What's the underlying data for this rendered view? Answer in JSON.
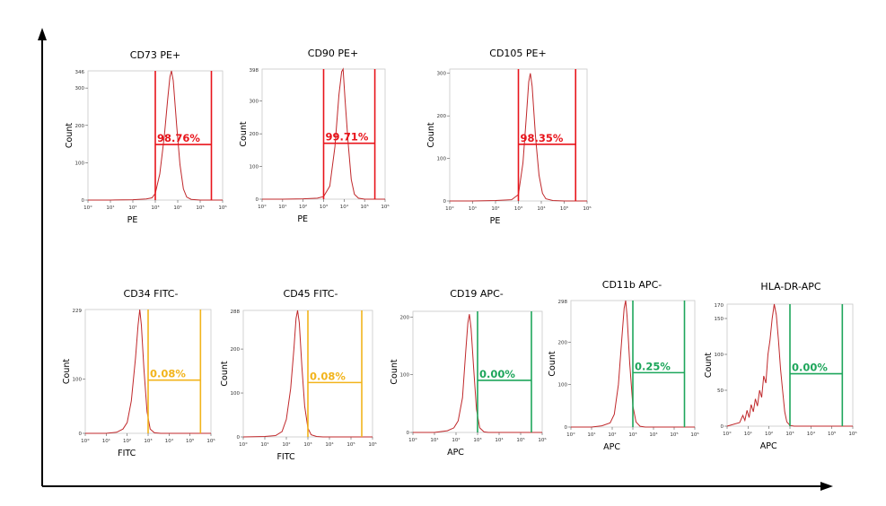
{
  "chart_data": [
    {
      "type": "line",
      "title": "CD73 PE+",
      "xlabel": "PE",
      "ylabel": "Count",
      "y_max_label": "346",
      "y_ticks": [
        0,
        100,
        200,
        300
      ],
      "ylim": [
        0,
        346
      ],
      "x_tick_labels": [
        "10°",
        "10¹",
        "10²",
        "10³",
        "10⁴",
        "10⁵",
        "10⁶"
      ],
      "xlim_log": [
        0,
        6
      ],
      "gate": {
        "label": "98.76%",
        "color": "#e8141b",
        "from_log": 3.0,
        "to_log": 5.5
      },
      "histogram": [
        [
          0,
          0
        ],
        [
          1,
          0
        ],
        [
          2,
          1
        ],
        [
          2.6,
          3
        ],
        [
          2.85,
          6
        ],
        [
          3.0,
          18
        ],
        [
          3.2,
          70
        ],
        [
          3.4,
          170
        ],
        [
          3.55,
          270
        ],
        [
          3.65,
          330
        ],
        [
          3.72,
          346
        ],
        [
          3.8,
          320
        ],
        [
          3.95,
          200
        ],
        [
          4.1,
          95
        ],
        [
          4.25,
          30
        ],
        [
          4.4,
          8
        ],
        [
          4.6,
          2
        ],
        [
          5,
          0
        ],
        [
          6,
          0
        ]
      ],
      "line_color": "#c0282b"
    },
    {
      "type": "line",
      "title": "CD90 PE+",
      "xlabel": "PE",
      "ylabel": "Count",
      "y_max_label": "398",
      "y_ticks": [
        0,
        100,
        200,
        300
      ],
      "ylim": [
        0,
        398
      ],
      "x_tick_labels": [
        "10°",
        "10¹",
        "10²",
        "10³",
        "10⁴",
        "10⁵",
        "10⁶"
      ],
      "xlim_log": [
        0,
        6
      ],
      "gate": {
        "label": "99.71%",
        "color": "#e8141b",
        "from_log": 3.0,
        "to_log": 5.5
      },
      "histogram": [
        [
          0,
          0
        ],
        [
          1,
          0
        ],
        [
          2,
          1
        ],
        [
          2.7,
          3
        ],
        [
          3.0,
          8
        ],
        [
          3.3,
          40
        ],
        [
          3.55,
          160
        ],
        [
          3.75,
          320
        ],
        [
          3.88,
          390
        ],
        [
          3.95,
          398
        ],
        [
          4.05,
          300
        ],
        [
          4.2,
          170
        ],
        [
          4.35,
          60
        ],
        [
          4.5,
          15
        ],
        [
          4.7,
          3
        ],
        [
          5,
          0
        ],
        [
          6,
          0
        ]
      ],
      "line_color": "#c0282b"
    },
    {
      "type": "line",
      "title": "CD105 PE+",
      "xlabel": "PE",
      "ylabel": "Count",
      "y_ticks": [
        0,
        100,
        200,
        300
      ],
      "ylim": [
        0,
        310
      ],
      "x_tick_labels": [
        "10°",
        "10¹",
        "10²",
        "10³",
        "10⁴",
        "10⁵",
        "10⁶"
      ],
      "xlim_log": [
        0,
        6
      ],
      "gate": {
        "label": "98.35%",
        "color": "#e8141b",
        "from_log": 3.0,
        "to_log": 5.5
      },
      "histogram": [
        [
          0,
          0
        ],
        [
          1,
          0
        ],
        [
          2,
          1
        ],
        [
          2.7,
          3
        ],
        [
          3.0,
          15
        ],
        [
          3.2,
          90
        ],
        [
          3.35,
          200
        ],
        [
          3.45,
          280
        ],
        [
          3.52,
          300
        ],
        [
          3.6,
          270
        ],
        [
          3.75,
          150
        ],
        [
          3.9,
          60
        ],
        [
          4.05,
          18
        ],
        [
          4.2,
          5
        ],
        [
          4.5,
          1
        ],
        [
          5,
          0
        ],
        [
          6,
          0
        ]
      ],
      "line_color": "#c0282b"
    },
    {
      "type": "line",
      "title": "CD34 FITC-",
      "xlabel": "FITC",
      "ylabel": "Count",
      "y_max_label": "229",
      "y_ticks": [
        0,
        100
      ],
      "ylim": [
        0,
        229
      ],
      "x_tick_labels": [
        "10°",
        "10¹",
        "10²",
        "10³",
        "10⁴",
        "10⁵",
        "10⁶"
      ],
      "xlim_log": [
        0,
        6
      ],
      "gate": {
        "label": "0.08%",
        "color": "#f2b41c",
        "from_log": 3.0,
        "to_log": 5.5
      },
      "histogram": [
        [
          0,
          0
        ],
        [
          1,
          0
        ],
        [
          1.5,
          2
        ],
        [
          1.8,
          8
        ],
        [
          2.0,
          20
        ],
        [
          2.2,
          60
        ],
        [
          2.4,
          140
        ],
        [
          2.52,
          200
        ],
        [
          2.6,
          229
        ],
        [
          2.68,
          200
        ],
        [
          2.8,
          120
        ],
        [
          2.95,
          40
        ],
        [
          3.1,
          8
        ],
        [
          3.3,
          1
        ],
        [
          3.6,
          0
        ],
        [
          6,
          0
        ]
      ],
      "line_color": "#c0282b"
    },
    {
      "type": "line",
      "title": "CD45 FITC-",
      "xlabel": "FITC",
      "ylabel": "Count",
      "y_max_label": "288",
      "y_ticks": [
        0,
        100,
        200
      ],
      "ylim": [
        0,
        288
      ],
      "x_tick_labels": [
        "10°",
        "10¹",
        "10²",
        "10³",
        "10⁴",
        "10⁵",
        "10⁶"
      ],
      "xlim_log": [
        0,
        6
      ],
      "gate": {
        "label": "0.08%",
        "color": "#f2b41c",
        "from_log": 3.0,
        "to_log": 5.5
      },
      "histogram": [
        [
          0,
          0
        ],
        [
          1,
          1
        ],
        [
          1.5,
          3
        ],
        [
          1.8,
          12
        ],
        [
          2.0,
          40
        ],
        [
          2.2,
          110
        ],
        [
          2.35,
          200
        ],
        [
          2.45,
          270
        ],
        [
          2.52,
          288
        ],
        [
          2.6,
          260
        ],
        [
          2.72,
          160
        ],
        [
          2.85,
          70
        ],
        [
          3.0,
          20
        ],
        [
          3.15,
          5
        ],
        [
          3.4,
          1
        ],
        [
          3.7,
          0
        ],
        [
          6,
          0
        ]
      ],
      "line_color": "#c0282b"
    },
    {
      "type": "line",
      "title": "CD19 APC-",
      "xlabel": "APC",
      "ylabel": "Count",
      "y_ticks": [
        0,
        100,
        200
      ],
      "ylim": [
        0,
        210
      ],
      "x_tick_labels": [
        "10°",
        "10¹",
        "10²",
        "10³",
        "10⁴",
        "10⁵",
        "10⁶"
      ],
      "xlim_log": [
        0,
        6
      ],
      "gate": {
        "label": "0.00%",
        "color": "#1ea65b",
        "from_log": 3.0,
        "to_log": 5.5
      },
      "histogram": [
        [
          0,
          0
        ],
        [
          1,
          0
        ],
        [
          1.6,
          3
        ],
        [
          1.9,
          8
        ],
        [
          2.1,
          20
        ],
        [
          2.3,
          60
        ],
        [
          2.45,
          140
        ],
        [
          2.55,
          190
        ],
        [
          2.62,
          205
        ],
        [
          2.7,
          180
        ],
        [
          2.82,
          110
        ],
        [
          2.95,
          40
        ],
        [
          3.1,
          8
        ],
        [
          3.3,
          1
        ],
        [
          3.5,
          0
        ],
        [
          6,
          0
        ]
      ],
      "line_color": "#c0282b"
    },
    {
      "type": "line",
      "title": "CD11b APC-",
      "xlabel": "APC",
      "ylabel": "Count",
      "y_max_label": "298",
      "y_ticks": [
        0,
        100,
        200
      ],
      "ylim": [
        0,
        298
      ],
      "x_tick_labels": [
        "10°",
        "10¹",
        "10²",
        "10³",
        "10⁴",
        "10⁵",
        "10⁶"
      ],
      "xlim_log": [
        0,
        6
      ],
      "gate": {
        "label": "0.25%",
        "color": "#1ea65b",
        "from_log": 3.0,
        "to_log": 5.5
      },
      "histogram": [
        [
          0,
          0
        ],
        [
          1,
          0
        ],
        [
          1.5,
          3
        ],
        [
          1.9,
          10
        ],
        [
          2.1,
          30
        ],
        [
          2.3,
          100
        ],
        [
          2.45,
          200
        ],
        [
          2.58,
          280
        ],
        [
          2.65,
          298
        ],
        [
          2.72,
          260
        ],
        [
          2.85,
          150
        ],
        [
          3.0,
          50
        ],
        [
          3.15,
          12
        ],
        [
          3.35,
          2
        ],
        [
          3.6,
          0
        ],
        [
          6,
          0
        ]
      ],
      "line_color": "#c0282b"
    },
    {
      "type": "line",
      "title": "HLA-DR-APC",
      "xlabel": "APC",
      "ylabel": "Count",
      "y_max_label": "170",
      "y_ticks": [
        0,
        50,
        100,
        150
      ],
      "ylim": [
        0,
        170
      ],
      "x_tick_labels": [
        "10°",
        "10¹",
        "10²",
        "10³",
        "10⁴",
        "10⁵",
        "10⁶"
      ],
      "xlim_log": [
        0,
        6
      ],
      "gate": {
        "label": "0.00%",
        "color": "#1ea65b",
        "from_log": 3.0,
        "to_log": 5.5
      },
      "histogram": [
        [
          0,
          0
        ],
        [
          0.6,
          5
        ],
        [
          0.75,
          15
        ],
        [
          0.85,
          8
        ],
        [
          0.95,
          22
        ],
        [
          1.05,
          12
        ],
        [
          1.15,
          30
        ],
        [
          1.25,
          20
        ],
        [
          1.35,
          38
        ],
        [
          1.45,
          28
        ],
        [
          1.55,
          50
        ],
        [
          1.65,
          40
        ],
        [
          1.75,
          70
        ],
        [
          1.85,
          60
        ],
        [
          1.95,
          100
        ],
        [
          2.05,
          120
        ],
        [
          2.15,
          150
        ],
        [
          2.25,
          170
        ],
        [
          2.35,
          155
        ],
        [
          2.45,
          120
        ],
        [
          2.55,
          80
        ],
        [
          2.65,
          50
        ],
        [
          2.75,
          20
        ],
        [
          2.85,
          6
        ],
        [
          3.0,
          1
        ],
        [
          3.2,
          0
        ],
        [
          6,
          0
        ]
      ],
      "line_color": "#c0282b"
    }
  ]
}
